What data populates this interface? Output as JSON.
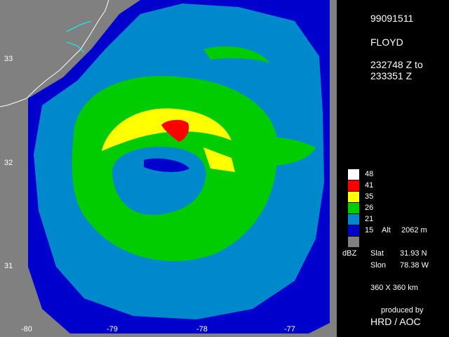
{
  "header": {
    "date_code": "99091511",
    "storm_name": "FLOYD",
    "time_line1": "232748 Z to",
    "time_line2": "233351 Z"
  },
  "legend": {
    "entries": [
      {
        "label": "48",
        "color": "#ffffff"
      },
      {
        "label": "41",
        "color": "#ff0000"
      },
      {
        "label": "35",
        "color": "#ffff00"
      },
      {
        "label": "26",
        "color": "#00cc00"
      },
      {
        "label": "21",
        "color": "#0088cc"
      },
      {
        "label": "15",
        "color": "#0000cc"
      },
      {
        "label": "",
        "color": "#808080"
      }
    ],
    "alt_label": "Alt",
    "alt_value": "2062 m",
    "units": "dBZ"
  },
  "center": {
    "slat_label": "Slat",
    "slat_value": "31.93 N",
    "slon_label": "Slon",
    "slon_value": "78.38 W"
  },
  "domain_size": "360 X 360 km",
  "credit": {
    "line1": "produced by",
    "line2": "HRD / AOC"
  },
  "axes": {
    "lat_ticks": [
      "33",
      "32",
      "31"
    ],
    "lon_ticks": [
      "-80",
      "-79",
      "-78",
      "-77"
    ]
  },
  "colors": {
    "background": "#000000",
    "land": "#808080",
    "coast": "#ffffff",
    "rivers": "#00ffff"
  }
}
